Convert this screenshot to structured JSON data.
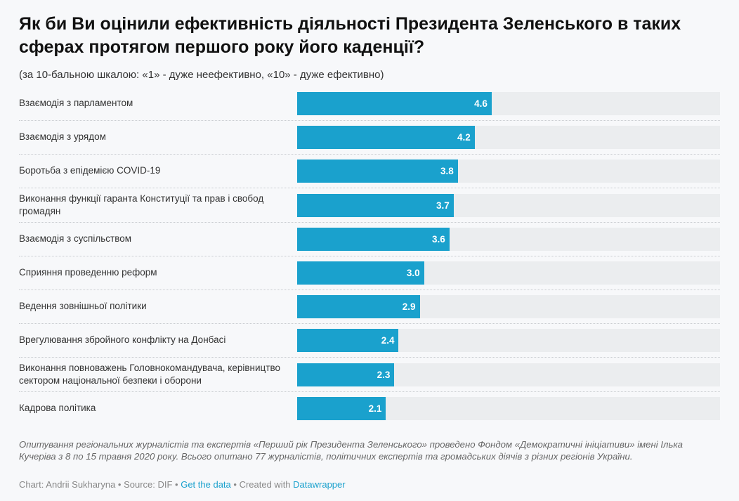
{
  "chart_data": {
    "type": "bar",
    "orientation": "horizontal",
    "title": "Як би Ви оцінили ефективність діяльності Президента Зеленського в таких сферах протягом першого року його каденції?",
    "subtitle": "(за 10-бальною шкалою: «1» - дуже неефективно, «10» - дуже ефективно)",
    "xlim": [
      0,
      10
    ],
    "categories": [
      "Взаємодія з парламентом",
      "Взаємодія з урядом",
      "Боротьба з епідемією COVID-19",
      "Виконання функції гаранта Конституції та прав і свобод громадян",
      "Взаємодія з суспільством",
      "Сприяння проведенню реформ",
      "Ведення зовнішньої політики",
      "Врегулювання збройного конфлікту на Донбасі",
      "Виконання повноважень Головнокомандувача, керівництво сектором національної безпеки і оборони",
      "Кадрова політика"
    ],
    "values": [
      4.6,
      4.2,
      3.8,
      3.7,
      3.6,
      3.0,
      2.9,
      2.4,
      2.3,
      2.1
    ],
    "value_labels": [
      "4.6",
      "4.2",
      "3.8",
      "3.7",
      "3.6",
      "3.0",
      "2.9",
      "2.4",
      "2.3",
      "2.1"
    ],
    "bar_color": "#1aa1cd",
    "track_color": "#ebedef"
  },
  "notes": "Опитування регіональних журналістів та експертів «Перший рік Президента Зеленського» проведено Фондом «Демократичні ініціативи» імені Ілька Кучеріва з 8 по 15 травня 2020 року. Всього опитано 77 журналістів, політичних експертів та громадських діячів з різних регіонів України.",
  "footer": {
    "chart_by": "Chart: Andrii Sukharyna",
    "sep1": " • ",
    "source": "Source: DIF",
    "sep2": " • ",
    "get_data": "Get the data",
    "sep3": " • ",
    "created_with": "Created with ",
    "datawrapper": "Datawrapper"
  }
}
